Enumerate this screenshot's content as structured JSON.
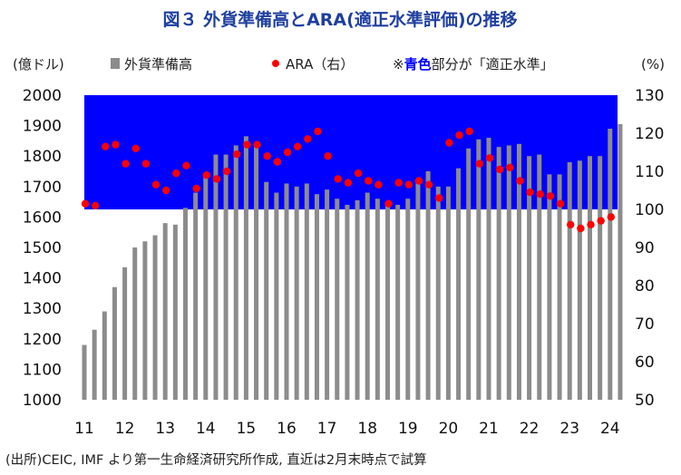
{
  "chart_data": {
    "type": "bar",
    "title": "図３ 外貨準備高とARA(適正水準評価)の推移",
    "ylabel_left": "(億ドル)",
    "ylabel_right": "(%)",
    "legend_bar": "外貨準備高",
    "legend_dot": "ARA（右）",
    "legend_note_prefix": "※",
    "legend_note_blue": "青色",
    "legend_note_suffix": "部分が「適正水準」",
    "source": "(出所)CEIC, IMF より第一生命経済研究所作成, 直近は2月末時点で試算",
    "y_left_range": [
      1000,
      2000
    ],
    "y_left_ticks": [
      "1000",
      "1100",
      "1200",
      "1300",
      "1400",
      "1500",
      "1600",
      "1700",
      "1800",
      "1900",
      "2000"
    ],
    "y_right_range": [
      50,
      130
    ],
    "y_right_ticks": [
      "50",
      "60",
      "70",
      "80",
      "90",
      "100",
      "110",
      "120",
      "130"
    ],
    "x_range": [
      2011,
      2024
    ],
    "x_ticks": [
      "11",
      "12",
      "13",
      "14",
      "15",
      "16",
      "17",
      "18",
      "19",
      "20",
      "21",
      "22",
      "23",
      "24"
    ],
    "adequate_band_ara": [
      100,
      130
    ],
    "colors": {
      "bar": "#8c8c8c",
      "dot": "#ff0000",
      "band": "#0000ff",
      "note_blue": "#0000ff",
      "title": "#1f3fa0"
    },
    "reserves": [
      {
        "x": 2011.0,
        "y": 1180
      },
      {
        "x": 2011.25,
        "y": 1230
      },
      {
        "x": 2011.5,
        "y": 1290
      },
      {
        "x": 2011.75,
        "y": 1370
      },
      {
        "x": 2012.0,
        "y": 1435
      },
      {
        "x": 2012.25,
        "y": 1500
      },
      {
        "x": 2012.5,
        "y": 1520
      },
      {
        "x": 2012.75,
        "y": 1540
      },
      {
        "x": 2013.0,
        "y": 1580
      },
      {
        "x": 2013.25,
        "y": 1575
      },
      {
        "x": 2013.5,
        "y": 1630
      },
      {
        "x": 2013.75,
        "y": 1680
      },
      {
        "x": 2014.0,
        "y": 1740
      },
      {
        "x": 2014.25,
        "y": 1805
      },
      {
        "x": 2014.5,
        "y": 1805
      },
      {
        "x": 2014.75,
        "y": 1835
      },
      {
        "x": 2015.0,
        "y": 1865
      },
      {
        "x": 2015.25,
        "y": 1830
      },
      {
        "x": 2015.5,
        "y": 1715
      },
      {
        "x": 2015.75,
        "y": 1680
      },
      {
        "x": 2016.0,
        "y": 1710
      },
      {
        "x": 2016.25,
        "y": 1700
      },
      {
        "x": 2016.5,
        "y": 1710
      },
      {
        "x": 2016.75,
        "y": 1675
      },
      {
        "x": 2017.0,
        "y": 1690
      },
      {
        "x": 2017.25,
        "y": 1660
      },
      {
        "x": 2017.5,
        "y": 1640
      },
      {
        "x": 2017.75,
        "y": 1655
      },
      {
        "x": 2018.0,
        "y": 1680
      },
      {
        "x": 2018.25,
        "y": 1660
      },
      {
        "x": 2018.5,
        "y": 1650
      },
      {
        "x": 2018.75,
        "y": 1640
      },
      {
        "x": 2019.0,
        "y": 1660
      },
      {
        "x": 2019.25,
        "y": 1720
      },
      {
        "x": 2019.5,
        "y": 1750
      },
      {
        "x": 2019.75,
        "y": 1700
      },
      {
        "x": 2020.0,
        "y": 1700
      },
      {
        "x": 2020.25,
        "y": 1760
      },
      {
        "x": 2020.5,
        "y": 1825
      },
      {
        "x": 2020.75,
        "y": 1855
      },
      {
        "x": 2021.0,
        "y": 1860
      },
      {
        "x": 2021.25,
        "y": 1830
      },
      {
        "x": 2021.5,
        "y": 1835
      },
      {
        "x": 2021.75,
        "y": 1840
      },
      {
        "x": 2022.0,
        "y": 1800
      },
      {
        "x": 2022.25,
        "y": 1805
      },
      {
        "x": 2022.5,
        "y": 1740
      },
      {
        "x": 2022.75,
        "y": 1740
      },
      {
        "x": 2023.0,
        "y": 1780
      },
      {
        "x": 2023.25,
        "y": 1785
      },
      {
        "x": 2023.5,
        "y": 1800
      },
      {
        "x": 2023.75,
        "y": 1800
      },
      {
        "x": 2024.0,
        "y": 1890
      },
      {
        "x": 2024.25,
        "y": 1905
      }
    ],
    "ara": [
      {
        "x": 2011.0,
        "y": 101.5
      },
      {
        "x": 2011.25,
        "y": 101.0
      },
      {
        "x": 2011.5,
        "y": 116.5
      },
      {
        "x": 2011.75,
        "y": 117.0
      },
      {
        "x": 2012.0,
        "y": 112.0
      },
      {
        "x": 2012.25,
        "y": 116.0
      },
      {
        "x": 2012.5,
        "y": 112.0
      },
      {
        "x": 2012.75,
        "y": 106.5
      },
      {
        "x": 2013.0,
        "y": 105.0
      },
      {
        "x": 2013.25,
        "y": 109.5
      },
      {
        "x": 2013.5,
        "y": 111.5
      },
      {
        "x": 2013.75,
        "y": 105.5
      },
      {
        "x": 2014.0,
        "y": 109.0
      },
      {
        "x": 2014.25,
        "y": 108.0
      },
      {
        "x": 2014.5,
        "y": 110.0
      },
      {
        "x": 2014.75,
        "y": 114.5
      },
      {
        "x": 2015.0,
        "y": 117.0
      },
      {
        "x": 2015.25,
        "y": 117.0
      },
      {
        "x": 2015.5,
        "y": 114.0
      },
      {
        "x": 2015.75,
        "y": 112.5
      },
      {
        "x": 2016.0,
        "y": 115.0
      },
      {
        "x": 2016.25,
        "y": 116.5
      },
      {
        "x": 2016.5,
        "y": 118.5
      },
      {
        "x": 2016.75,
        "y": 120.5
      },
      {
        "x": 2017.0,
        "y": 114.0
      },
      {
        "x": 2017.25,
        "y": 108.0
      },
      {
        "x": 2017.5,
        "y": 107.0
      },
      {
        "x": 2017.75,
        "y": 109.5
      },
      {
        "x": 2018.0,
        "y": 107.5
      },
      {
        "x": 2018.25,
        "y": 106.5
      },
      {
        "x": 2018.5,
        "y": 101.5
      },
      {
        "x": 2018.75,
        "y": 107.0
      },
      {
        "x": 2019.0,
        "y": 106.5
      },
      {
        "x": 2019.25,
        "y": 107.5
      },
      {
        "x": 2019.5,
        "y": 106.5
      },
      {
        "x": 2019.75,
        "y": 103.0
      },
      {
        "x": 2020.0,
        "y": 117.5
      },
      {
        "x": 2020.25,
        "y": 119.5
      },
      {
        "x": 2020.5,
        "y": 120.5
      },
      {
        "x": 2020.75,
        "y": 112.0
      },
      {
        "x": 2021.0,
        "y": 113.5
      },
      {
        "x": 2021.25,
        "y": 110.5
      },
      {
        "x": 2021.5,
        "y": 111.0
      },
      {
        "x": 2021.75,
        "y": 107.5
      },
      {
        "x": 2022.0,
        "y": 104.5
      },
      {
        "x": 2022.25,
        "y": 104.0
      },
      {
        "x": 2022.5,
        "y": 103.5
      },
      {
        "x": 2022.75,
        "y": 101.5
      },
      {
        "x": 2023.0,
        "y": 96.0
      },
      {
        "x": 2023.25,
        "y": 95.0
      },
      {
        "x": 2023.5,
        "y": 96.0
      },
      {
        "x": 2023.75,
        "y": 97.0
      },
      {
        "x": 2024.0,
        "y": 98.0
      }
    ],
    "legend_placement": "top",
    "grid": false
  }
}
